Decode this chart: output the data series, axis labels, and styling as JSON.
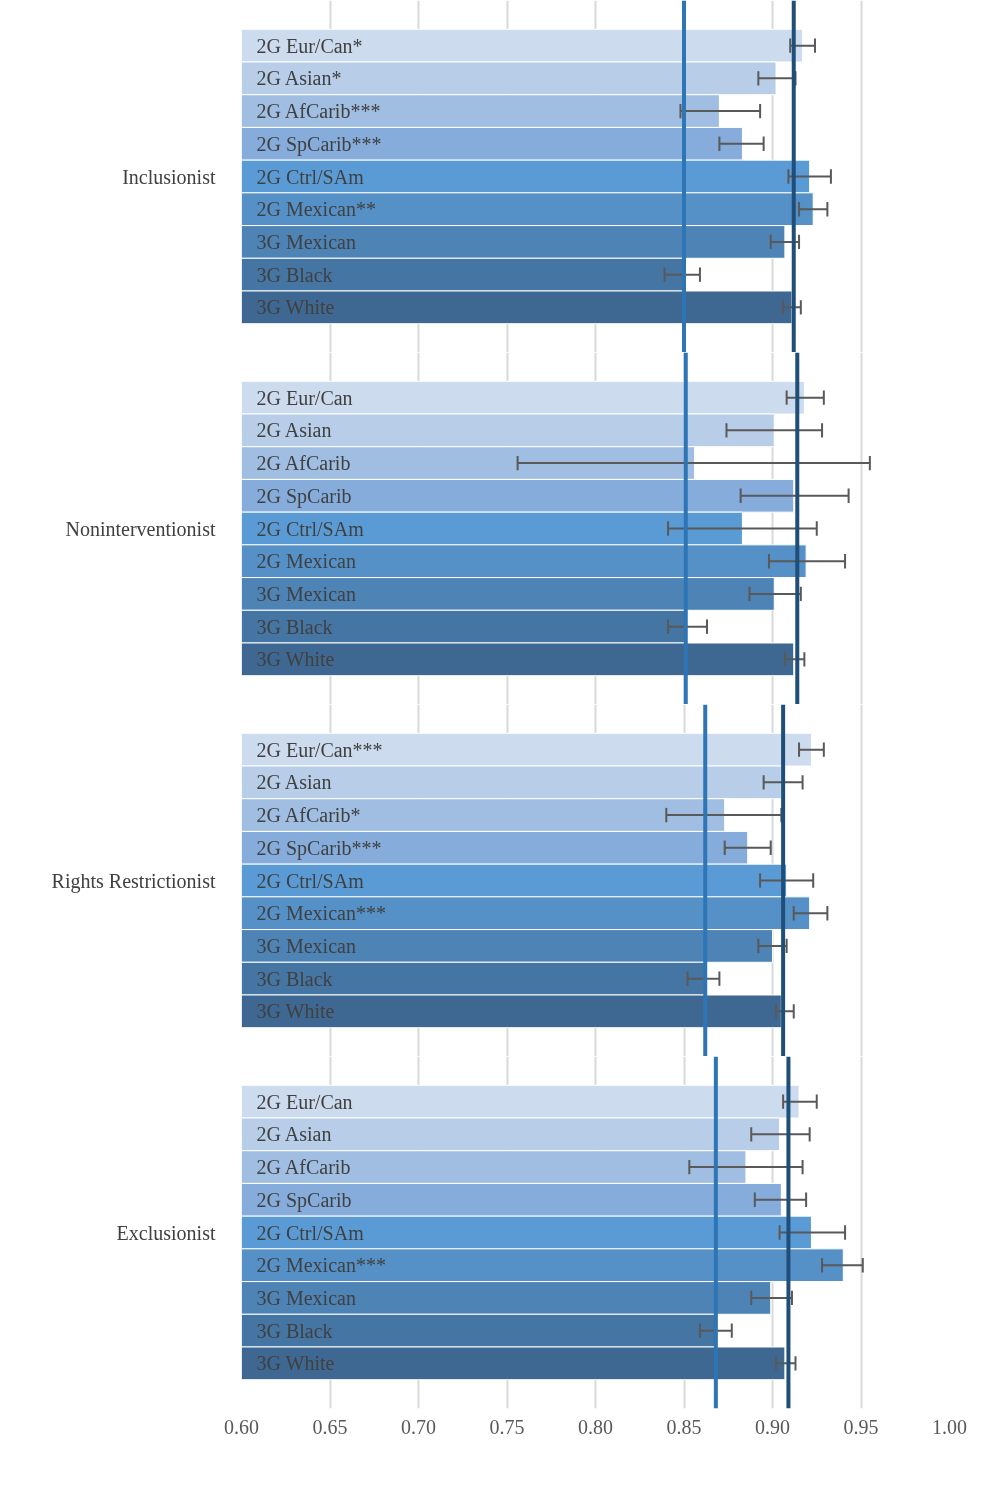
{
  "chart_data": [
    {
      "type": "bar",
      "orientation": "horizontal",
      "ylabel": "Inclusionist",
      "tick_labels": "y",
      "grid": "x",
      "categories": [
        "2G Eur/Can*",
        "2G Asian*",
        "2G AfCarib***",
        "2G SpCarib***",
        "2G Ctrl/SAm",
        "2G Mexican**",
        "3G Mexican",
        "3G Black",
        "3G White"
      ],
      "values": [
        0.917,
        0.902,
        0.87,
        0.883,
        0.921,
        0.923,
        0.907,
        0.85,
        0.911
      ],
      "errors": [
        [
          0.91,
          0.924
        ],
        [
          0.892,
          0.913
        ],
        [
          0.848,
          0.893
        ],
        [
          0.87,
          0.895
        ],
        [
          0.909,
          0.933
        ],
        [
          0.915,
          0.931
        ],
        [
          0.899,
          0.915
        ],
        [
          0.839,
          0.859
        ],
        [
          0.906,
          0.916
        ]
      ],
      "colors": [
        "#cddbee",
        "#b8cde8",
        "#a0bde2",
        "#85acdb",
        "#5b9bd5",
        "#5591c7",
        "#4e83b6",
        "#4575a3",
        "#3e6891"
      ],
      "xlim": [
        0.6,
        1.0
      ],
      "xticks": [
        0.6,
        0.65,
        0.7,
        0.75,
        0.8,
        0.85,
        0.9,
        0.95,
        1.0
      ],
      "ref_lines": [
        {
          "axis": "x",
          "value": 0.85,
          "color": "#2e75b6"
        },
        {
          "axis": "x",
          "value": 0.912,
          "color": "#1f4e79"
        }
      ]
    },
    {
      "type": "bar",
      "orientation": "horizontal",
      "ylabel": "Noninterventionist",
      "tick_labels": "y",
      "grid": "x",
      "categories": [
        "2G Eur/Can",
        "2G Asian",
        "2G AfCarib",
        "2G SpCarib",
        "2G Ctrl/SAm",
        "2G Mexican",
        "3G Mexican",
        "3G Black",
        "3G White"
      ],
      "values": [
        0.918,
        0.901,
        0.856,
        0.912,
        0.883,
        0.919,
        0.901,
        0.852,
        0.912
      ],
      "errors": [
        [
          0.908,
          0.929
        ],
        [
          0.874,
          0.928
        ],
        [
          0.756,
          0.955
        ],
        [
          0.882,
          0.943
        ],
        [
          0.841,
          0.925
        ],
        [
          0.898,
          0.941
        ],
        [
          0.887,
          0.916
        ],
        [
          0.841,
          0.863
        ],
        [
          0.907,
          0.918
        ]
      ],
      "colors": [
        "#cddbee",
        "#b8cde8",
        "#a0bde2",
        "#85acdb",
        "#5b9bd5",
        "#5591c7",
        "#4e83b6",
        "#4575a3",
        "#3e6891"
      ],
      "xlim": [
        0.6,
        1.0
      ],
      "xticks": [
        0.6,
        0.65,
        0.7,
        0.75,
        0.8,
        0.85,
        0.9,
        0.95,
        1.0
      ],
      "ref_lines": [
        {
          "axis": "x",
          "value": 0.851,
          "color": "#2e75b6"
        },
        {
          "axis": "x",
          "value": 0.914,
          "color": "#1f4e79"
        }
      ]
    },
    {
      "type": "bar",
      "orientation": "horizontal",
      "ylabel": "Rights Restrictionist",
      "tick_labels": "y",
      "grid": "x",
      "categories": [
        "2G Eur/Can***",
        "2G Asian",
        "2G AfCarib*",
        "2G SpCarib***",
        "2G Ctrl/SAm",
        "2G Mexican***",
        "3G Mexican",
        "3G Black",
        "3G White"
      ],
      "values": [
        0.922,
        0.905,
        0.873,
        0.886,
        0.908,
        0.921,
        0.9,
        0.862,
        0.905
      ],
      "errors": [
        [
          0.915,
          0.929
        ],
        [
          0.895,
          0.917
        ],
        [
          0.84,
          0.905
        ],
        [
          0.873,
          0.899
        ],
        [
          0.893,
          0.923
        ],
        [
          0.912,
          0.931
        ],
        [
          0.892,
          0.908
        ],
        [
          0.852,
          0.87
        ],
        [
          0.902,
          0.912
        ]
      ],
      "colors": [
        "#cddbee",
        "#b8cde8",
        "#a0bde2",
        "#85acdb",
        "#5b9bd5",
        "#5591c7",
        "#4e83b6",
        "#4575a3",
        "#3e6891"
      ],
      "xlim": [
        0.6,
        1.0
      ],
      "xticks": [
        0.6,
        0.65,
        0.7,
        0.75,
        0.8,
        0.85,
        0.9,
        0.95,
        1.0
      ],
      "ref_lines": [
        {
          "axis": "x",
          "value": 0.862,
          "color": "#2e75b6"
        },
        {
          "axis": "x",
          "value": 0.906,
          "color": "#1f4e79"
        }
      ]
    },
    {
      "type": "bar",
      "orientation": "horizontal",
      "ylabel": "Exclusionist",
      "grid": "x",
      "categories": [
        "2G Eur/Can",
        "2G Asian",
        "2G AfCarib",
        "2G SpCarib",
        "2G Ctrl/SAm",
        "2G Mexican***",
        "3G Mexican",
        "3G Black",
        "3G White"
      ],
      "values": [
        0.915,
        0.904,
        0.885,
        0.905,
        0.922,
        0.94,
        0.899,
        0.869,
        0.907
      ],
      "errors": [
        [
          0.906,
          0.925
        ],
        [
          0.888,
          0.921
        ],
        [
          0.853,
          0.917
        ],
        [
          0.89,
          0.919
        ],
        [
          0.904,
          0.941
        ],
        [
          0.928,
          0.951
        ],
        [
          0.888,
          0.911
        ],
        [
          0.859,
          0.877
        ],
        [
          0.902,
          0.913
        ]
      ],
      "colors": [
        "#cddbee",
        "#b8cde8",
        "#a0bde2",
        "#85acdb",
        "#5b9bd5",
        "#5591c7",
        "#4e83b6",
        "#4575a3",
        "#3e6891"
      ],
      "xlim": [
        0.6,
        1.0
      ],
      "xticks": [
        {
          "value": 0.6,
          "label": "0.60"
        },
        {
          "value": 0.65,
          "label": "0.65"
        },
        {
          "value": 0.7,
          "label": "0.70"
        },
        {
          "value": 0.75,
          "label": "0.75"
        },
        {
          "value": 0.8,
          "label": "0.80"
        },
        {
          "value": 0.85,
          "label": "0.85"
        },
        {
          "value": 0.9,
          "label": "0.90"
        },
        {
          "value": 0.95,
          "label": "0.95"
        },
        {
          "value": 1.0,
          "label": "1.00"
        }
      ],
      "ref_lines": [
        {
          "axis": "x",
          "value": 0.868,
          "color": "#2e75b6"
        },
        {
          "axis": "x",
          "value": 0.909,
          "color": "#1f4e79"
        }
      ]
    }
  ]
}
